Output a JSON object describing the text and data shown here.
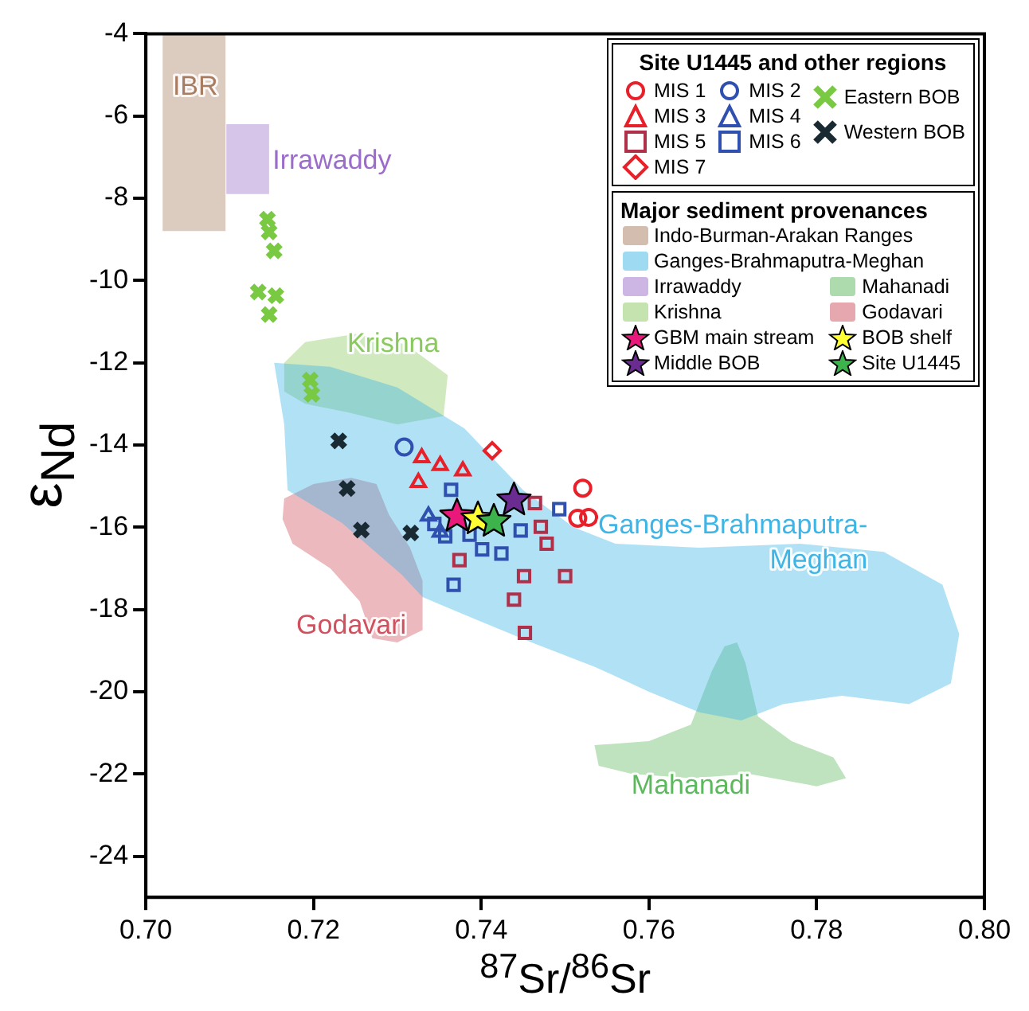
{
  "chart_data": {
    "type": "scatter",
    "xlabel": "$^{87}$Sr/$^{86}$Sr",
    "ylabel": "ε$_{Nd}$",
    "legend_title": "Site U1445 and other regions",
    "legend": "top right",
    "xlim": [
      0.7,
      0.8
    ],
    "ylim": [
      -25,
      -4
    ],
    "xticks": [
      {
        "value": 0.7,
        "label": "0.70"
      },
      {
        "value": 0.72,
        "label": "0.72"
      },
      {
        "value": 0.74,
        "label": "0.74"
      },
      {
        "value": 0.76,
        "label": "0.76"
      },
      {
        "value": 0.78,
        "label": "0.78"
      },
      {
        "value": 0.8,
        "label": "0.80"
      }
    ],
    "yticks": [
      -24,
      -22,
      -20,
      -18,
      -16,
      -14,
      -12,
      -10,
      -8,
      -6,
      -4
    ],
    "annotations": [
      "Major sediment provenances",
      "IBR",
      "Ganges-Brahmaputra-Meghan",
      "Irrawaddy",
      "Mahanadi",
      "Krishna",
      "Godavari"
    ],
    "series": [
      {
        "name": "Indo-Burman-Arakan Ranges",
        "type": "area",
        "color": "#a87c60",
        "x": [
          0.702,
          0.7095,
          0.7095,
          0.702
        ],
        "values": [
          -4,
          -4,
          -8.8,
          -8.8
        ]
      },
      {
        "name": "Ganges-Brahmaputra-Meghan",
        "type": "area",
        "color": "#3db5e6",
        "x": [
          0.7153,
          0.722,
          0.73,
          0.738,
          0.745,
          0.751,
          0.756,
          0.766,
          0.778,
          0.788,
          0.795,
          0.797,
          0.796,
          0.791,
          0.783,
          0.776,
          0.771,
          0.766,
          0.76,
          0.7536,
          0.746,
          0.74,
          0.733,
          0.7305,
          0.7234,
          0.7169,
          0.7165
        ],
        "values": [
          -12.0,
          -12.1,
          -12.6,
          -13.6,
          -15.1,
          -16.0,
          -16.4,
          -16.5,
          -16.4,
          -16.6,
          -17.4,
          -18.6,
          -19.8,
          -20.3,
          -20.1,
          -20.3,
          -20.7,
          -20.5,
          -20.0,
          -19.4,
          -18.8,
          -18.3,
          -17.7,
          -17.15,
          -15.9,
          -15.1,
          -13.5
        ]
      },
      {
        "name": "Irrawaddy",
        "type": "area",
        "color": "#9b6cc9",
        "x": [
          0.7096,
          0.7147,
          0.7147,
          0.7096
        ],
        "values": [
          -6.2,
          -6.2,
          -7.9,
          -7.9
        ]
      },
      {
        "name": "Mahanadi",
        "type": "area",
        "color": "#5cb85c",
        "x": [
          0.7535,
          0.76,
          0.765,
          0.7675,
          0.769,
          0.7705,
          0.7715,
          0.773,
          0.777,
          0.782,
          0.7835,
          0.78,
          0.772,
          0.765,
          0.758,
          0.754
        ],
        "values": [
          -21.3,
          -21.2,
          -20.8,
          -19.5,
          -18.9,
          -18.8,
          -19.3,
          -20.6,
          -21.2,
          -21.6,
          -22.1,
          -22.3,
          -22.0,
          -22.1,
          -22.0,
          -21.8
        ]
      },
      {
        "name": "Krishna",
        "type": "area",
        "color": "#8cc860",
        "x": [
          0.7165,
          0.719,
          0.725,
          0.731,
          0.736,
          0.7355,
          0.73,
          0.724,
          0.719,
          0.7165
        ],
        "values": [
          -12.0,
          -11.5,
          -11.3,
          -11.55,
          -12.3,
          -13.3,
          -13.5,
          -13.2,
          -13.0,
          -12.7
        ]
      },
      {
        "name": "Godavari",
        "type": "area",
        "color": "#d0505e",
        "x": [
          0.7165,
          0.72,
          0.7245,
          0.7275,
          0.729,
          0.7315,
          0.733,
          0.733,
          0.73,
          0.727,
          0.7255,
          0.722,
          0.7175,
          0.7163
        ],
        "values": [
          -15.3,
          -14.95,
          -14.8,
          -14.95,
          -15.7,
          -16.5,
          -17.3,
          -18.5,
          -18.8,
          -18.7,
          -17.8,
          -17.0,
          -16.4,
          -15.8
        ]
      },
      {
        "name": "MIS 1",
        "marker": "circle",
        "color": "#e8202a",
        "x": [
          0.7521,
          0.7515,
          0.7528
        ],
        "values": [
          -15.05,
          -15.78,
          -15.76
        ]
      },
      {
        "name": "MIS 3",
        "marker": "triangle",
        "color": "#e8202a",
        "x": [
          0.7329,
          0.7351,
          0.7378,
          0.7325
        ],
        "values": [
          -14.31,
          -14.5,
          -14.63,
          -14.91
        ]
      },
      {
        "name": "MIS 5",
        "marker": "square",
        "color": "#b0304a",
        "x": [
          0.7374,
          0.7451,
          0.75,
          0.7439,
          0.7452,
          0.7478,
          0.7464,
          0.7471
        ],
        "values": [
          -16.8,
          -17.19,
          -17.19,
          -17.76,
          -18.57,
          -16.4,
          -15.41,
          -15.99
        ]
      },
      {
        "name": "MIS 7",
        "marker": "diamond",
        "color": "#e8202a",
        "x": [
          0.7413
        ],
        "values": [
          -14.14
        ]
      },
      {
        "name": "MIS 2",
        "marker": "circle",
        "color": "#3050b0",
        "x": [
          0.7308
        ],
        "values": [
          -14.05
        ]
      },
      {
        "name": "MIS 4",
        "marker": "triangle",
        "color": "#3050b0",
        "x": [
          0.7337,
          0.7351
        ],
        "values": [
          -15.73,
          -16.12
        ]
      },
      {
        "name": "MIS 6",
        "marker": "square",
        "color": "#3050b0",
        "x": [
          0.7364,
          0.7493,
          0.7447,
          0.7424,
          0.7401,
          0.7386,
          0.7357,
          0.7367,
          0.7344
        ],
        "values": [
          -15.09,
          -15.56,
          -16.08,
          -16.64,
          -16.54,
          -16.18,
          -16.22,
          -17.4,
          -15.92
        ]
      },
      {
        "name": "Eastern BOB",
        "marker": "cross",
        "color": "#7ac943",
        "x": [
          0.7145,
          0.7147,
          0.7153,
          0.7134,
          0.7155,
          0.7147,
          0.7196,
          0.7198
        ],
        "values": [
          -8.51,
          -8.82,
          -9.28,
          -10.28,
          -10.37,
          -10.83,
          -12.42,
          -12.77
        ]
      },
      {
        "name": "Western BOB",
        "marker": "cross",
        "color": "#1a2a33",
        "x": [
          0.723,
          0.724,
          0.7257,
          0.7316
        ],
        "values": [
          -13.9,
          -15.06,
          -16.07,
          -16.14
        ]
      },
      {
        "name": "GBM main stream",
        "marker": "star",
        "color": "#e8197a",
        "x": [
          0.7371
        ],
        "values": [
          -15.73
        ]
      },
      {
        "name": "BOB shelf",
        "marker": "star",
        "color": "#ffff33",
        "x": [
          0.7396
        ],
        "values": [
          -15.8
        ]
      },
      {
        "name": "Middle BOB",
        "marker": "star",
        "color": "#6a2c91",
        "x": [
          0.7439
        ],
        "values": [
          -15.34
        ]
      },
      {
        "name": "Site U1445",
        "marker": "star",
        "color": "#3cb44b",
        "x": [
          0.7415
        ],
        "values": [
          -15.86
        ]
      }
    ]
  }
}
